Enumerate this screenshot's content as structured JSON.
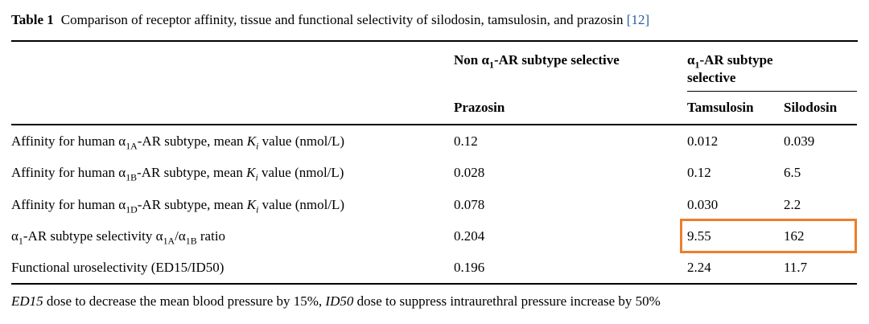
{
  "caption": {
    "label": "Table 1",
    "text": "Comparison of receptor affinity, tissue and functional selectivity of silodosin, tamsulosin, and prazosin",
    "citation": "[12]",
    "citation_color": "#2b5d9b"
  },
  "table": {
    "group_headers": {
      "non_selective": [
        {
          "t": "Non α"
        },
        {
          "t": "1",
          "sub": true
        },
        {
          "t": "-AR subtype selective"
        }
      ],
      "selective": [
        {
          "t": "α"
        },
        {
          "t": "1",
          "sub": true
        },
        {
          "t": "-AR subtype selective"
        }
      ]
    },
    "column_headers": [
      "Prazosin",
      "Tamsulosin",
      "Silodosin"
    ],
    "rows": [
      {
        "label": [
          {
            "t": "Affinity for human α"
          },
          {
            "t": "1A",
            "sub": true
          },
          {
            "t": "-AR subtype, mean "
          },
          {
            "t": "K",
            "i": true
          },
          {
            "t": "i",
            "sub": true,
            "i": true
          },
          {
            "t": " value (nmol/L)"
          }
        ],
        "values": [
          "0.12",
          "0.012",
          "0.039"
        ]
      },
      {
        "label": [
          {
            "t": "Affinity for human α"
          },
          {
            "t": "1B",
            "sub": true
          },
          {
            "t": "-AR subtype, mean "
          },
          {
            "t": "K",
            "i": true
          },
          {
            "t": "i",
            "sub": true,
            "i": true
          },
          {
            "t": " value (nmol/L)"
          }
        ],
        "values": [
          "0.028",
          "0.12",
          "6.5"
        ]
      },
      {
        "label": [
          {
            "t": "Affinity for human α"
          },
          {
            "t": "1D",
            "sub": true
          },
          {
            "t": "-AR subtype, mean "
          },
          {
            "t": "K",
            "i": true
          },
          {
            "t": "i",
            "sub": true,
            "i": true
          },
          {
            "t": " value (nmol/L)"
          }
        ],
        "values": [
          "0.078",
          "0.030",
          "2.2"
        ]
      },
      {
        "label": [
          {
            "t": "α"
          },
          {
            "t": "1",
            "sub": true
          },
          {
            "t": "-AR subtype selectivity α"
          },
          {
            "t": "1A",
            "sub": true
          },
          {
            "t": "/α"
          },
          {
            "t": "1B",
            "sub": true
          },
          {
            "t": " ratio"
          }
        ],
        "values": [
          "0.204",
          "9.55",
          "162"
        ],
        "highlighted": true
      },
      {
        "label": [
          {
            "t": "Functional uroselectivity (ED15/ID50)"
          }
        ],
        "values": [
          "0.196",
          "2.24",
          "11.7"
        ]
      }
    ],
    "highlight": {
      "row": 4,
      "columns": [
        "Tamsulosin",
        "Silodosin"
      ],
      "color": "#ec7f2b"
    }
  },
  "footnote": [
    {
      "t": "ED15",
      "i": true
    },
    {
      "t": " dose to decrease the mean blood pressure by 15%, "
    },
    {
      "t": "ID50",
      "i": true
    },
    {
      "t": "  dose to suppress intraurethral pressure increase by 50%"
    }
  ]
}
